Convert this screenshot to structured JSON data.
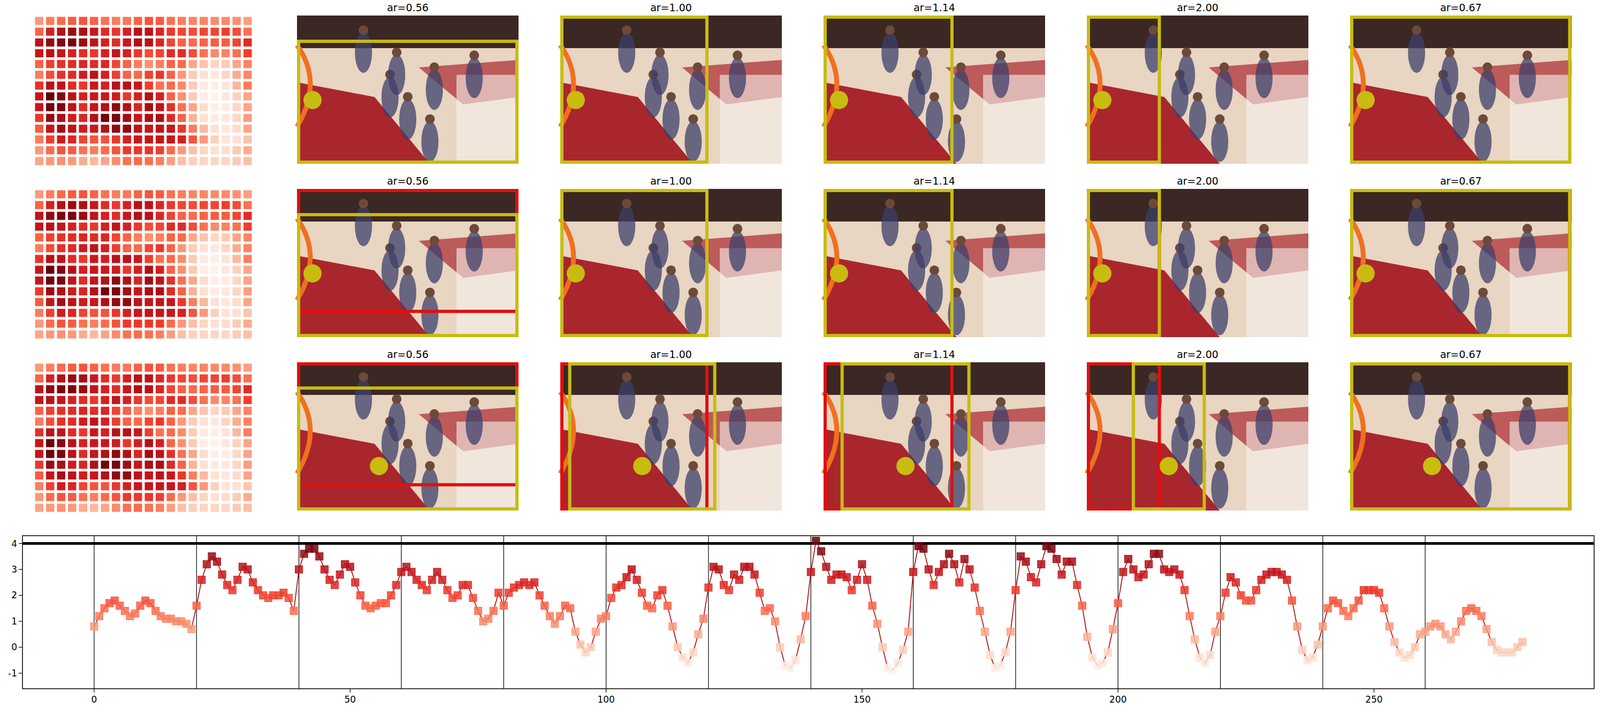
{
  "chart_data": {
    "type": "line",
    "x": [
      0,
      1,
      2,
      3,
      4,
      5,
      6,
      7,
      8,
      9,
      10,
      11,
      12,
      13,
      14,
      15,
      16,
      17,
      18,
      19,
      20,
      21,
      22,
      23,
      24,
      25,
      26,
      27,
      28,
      29,
      30,
      31,
      32,
      33,
      34,
      35,
      36,
      37,
      38,
      39,
      40,
      41,
      42,
      43,
      44,
      45,
      46,
      47,
      48,
      49,
      50,
      51,
      52,
      53,
      54,
      55,
      56,
      57,
      58,
      59,
      60,
      61,
      62,
      63,
      64,
      65,
      66,
      67,
      68,
      69,
      70,
      71,
      72,
      73,
      74,
      75,
      76,
      77,
      78,
      79,
      80,
      81,
      82,
      83,
      84,
      85,
      86,
      87,
      88,
      89,
      90,
      91,
      92,
      93,
      94,
      95,
      96,
      97,
      98,
      99,
      100,
      101,
      102,
      103,
      104,
      105,
      106,
      107,
      108,
      109,
      110,
      111,
      112,
      113,
      114,
      115,
      116,
      117,
      118,
      119,
      120,
      121,
      122,
      123,
      124,
      125,
      126,
      127,
      128,
      129,
      130,
      131,
      132,
      133,
      134,
      135,
      136,
      137,
      138,
      139,
      140,
      141,
      142,
      143,
      144,
      145,
      146,
      147,
      148,
      149,
      150,
      151,
      152,
      153,
      154,
      155,
      156,
      157,
      158,
      159,
      160,
      161,
      162,
      163,
      164,
      165,
      166,
      167,
      168,
      169,
      170,
      171,
      172,
      173,
      174,
      175,
      176,
      177,
      178,
      179,
      180,
      181,
      182,
      183,
      184,
      185,
      186,
      187,
      188,
      189,
      190,
      191,
      192,
      193,
      194,
      195,
      196,
      197,
      198,
      199,
      200,
      201,
      202,
      203,
      204,
      205,
      206,
      207,
      208,
      209,
      210,
      211,
      212,
      213,
      214,
      215,
      216,
      217,
      218,
      219,
      220,
      221,
      222,
      223,
      224,
      225,
      226,
      227,
      228,
      229,
      230,
      231,
      232,
      233,
      234,
      235,
      236,
      237,
      238,
      239,
      240,
      241,
      242,
      243,
      244,
      245,
      246,
      247,
      248,
      249,
      250,
      251,
      252,
      253,
      254,
      255,
      256,
      257,
      258,
      259,
      260,
      261,
      262,
      263,
      264,
      265,
      266,
      267,
      268,
      269,
      270,
      271,
      272,
      273,
      274,
      275,
      276,
      277,
      278,
      279
    ],
    "series": [
      {
        "color": "#b01c1c",
        "marker": "square",
        "values": [
          0.8,
          1.2,
          1.5,
          1.7,
          1.8,
          1.6,
          1.4,
          1.2,
          1.3,
          1.6,
          1.8,
          1.7,
          1.4,
          1.2,
          1.1,
          1.1,
          1.0,
          1.0,
          0.9,
          0.7,
          1.6,
          2.6,
          3.2,
          3.5,
          3.3,
          2.8,
          2.4,
          2.2,
          2.6,
          3.1,
          3.0,
          2.5,
          2.2,
          2.0,
          1.9,
          2.0,
          2.0,
          2.1,
          1.9,
          1.4,
          3.0,
          3.6,
          3.8,
          3.8,
          3.5,
          3.0,
          2.6,
          2.4,
          2.8,
          3.2,
          3.1,
          2.5,
          2.0,
          1.6,
          1.5,
          1.6,
          1.7,
          1.7,
          2.0,
          2.4,
          2.9,
          3.1,
          2.9,
          2.6,
          2.4,
          2.2,
          2.6,
          2.9,
          2.6,
          2.2,
          1.9,
          2.0,
          2.4,
          2.4,
          1.9,
          1.4,
          1.0,
          1.1,
          1.4,
          2.1,
          1.6,
          2.1,
          2.3,
          2.4,
          2.5,
          2.4,
          2.5,
          2.0,
          1.6,
          1.2,
          0.9,
          1.2,
          1.6,
          1.5,
          0.6,
          0.1,
          -0.2,
          0.0,
          0.6,
          1.1,
          1.2,
          1.9,
          2.3,
          2.4,
          2.7,
          3.0,
          2.6,
          2.1,
          1.6,
          1.5,
          2.0,
          2.2,
          1.6,
          0.8,
          0.0,
          -0.4,
          -0.6,
          -0.2,
          0.5,
          1.1,
          2.3,
          3.1,
          3.0,
          2.4,
          2.2,
          2.8,
          2.6,
          3.1,
          3.1,
          2.8,
          2.1,
          1.4,
          1.5,
          1.0,
          0.0,
          -0.7,
          -0.8,
          -0.5,
          0.3,
          1.2,
          2.9,
          4.1,
          3.7,
          3.1,
          2.6,
          2.8,
          2.8,
          2.7,
          2.2,
          2.6,
          3.2,
          2.6,
          1.6,
          0.9,
          0.0,
          -0.8,
          -0.9,
          -0.6,
          -0.1,
          0.6,
          2.9,
          3.9,
          3.8,
          3.0,
          2.4,
          2.9,
          3.2,
          3.6,
          3.2,
          2.5,
          3.4,
          3.0,
          2.3,
          1.4,
          0.6,
          -0.3,
          -0.8,
          -0.7,
          -0.2,
          0.6,
          2.2,
          3.5,
          3.3,
          2.7,
          2.5,
          3.2,
          3.9,
          3.8,
          3.4,
          2.8,
          3.3,
          3.3,
          2.4,
          1.6,
          0.4,
          -0.4,
          -0.7,
          -0.6,
          -0.2,
          0.7,
          1.7,
          2.9,
          3.4,
          3.0,
          2.7,
          2.8,
          3.2,
          3.6,
          3.6,
          3.0,
          2.9,
          3.0,
          2.8,
          2.2,
          1.2,
          0.3,
          -0.4,
          -0.6,
          -0.3,
          0.6,
          1.2,
          2.1,
          2.7,
          2.5,
          2.0,
          1.8,
          1.8,
          2.2,
          2.6,
          2.8,
          2.9,
          2.9,
          2.8,
          2.6,
          1.8,
          0.8,
          -0.1,
          -0.5,
          -0.4,
          0.1,
          0.8,
          1.5,
          1.8,
          1.7,
          1.4,
          1.2,
          1.5,
          1.8,
          2.2,
          2.2,
          2.2,
          2.1,
          1.5,
          0.8,
          0.2,
          -0.2,
          -0.4,
          -0.3,
          0.0,
          0.5,
          0.6,
          0.8,
          0.9,
          0.8,
          0.5,
          0.3,
          0.6,
          1.0,
          1.4,
          1.5,
          1.4,
          1.2,
          0.7,
          0.2,
          -0.1,
          -0.2,
          -0.2,
          -0.2,
          0.0,
          0.2
        ]
      }
    ],
    "xlim": [
      -14,
      293
    ],
    "ylim": [
      -1.6,
      4.3
    ],
    "xticks": [
      0,
      50,
      100,
      150,
      200,
      250
    ],
    "yticks": [
      -1,
      0,
      1,
      2,
      3,
      4
    ],
    "vlines": [
      0,
      20,
      40,
      60,
      80,
      100,
      120,
      140,
      160,
      180,
      200,
      220,
      240,
      260
    ],
    "reference_line": 4,
    "color_range": [
      -1,
      4
    ]
  },
  "panels": {
    "titles": [
      "ar=0.56",
      "ar=1.00",
      "ar=1.14",
      "ar=2.00",
      "ar=0.67"
    ],
    "ar": [
      0.56,
      1.0,
      1.14,
      2.0,
      0.67
    ]
  }
}
